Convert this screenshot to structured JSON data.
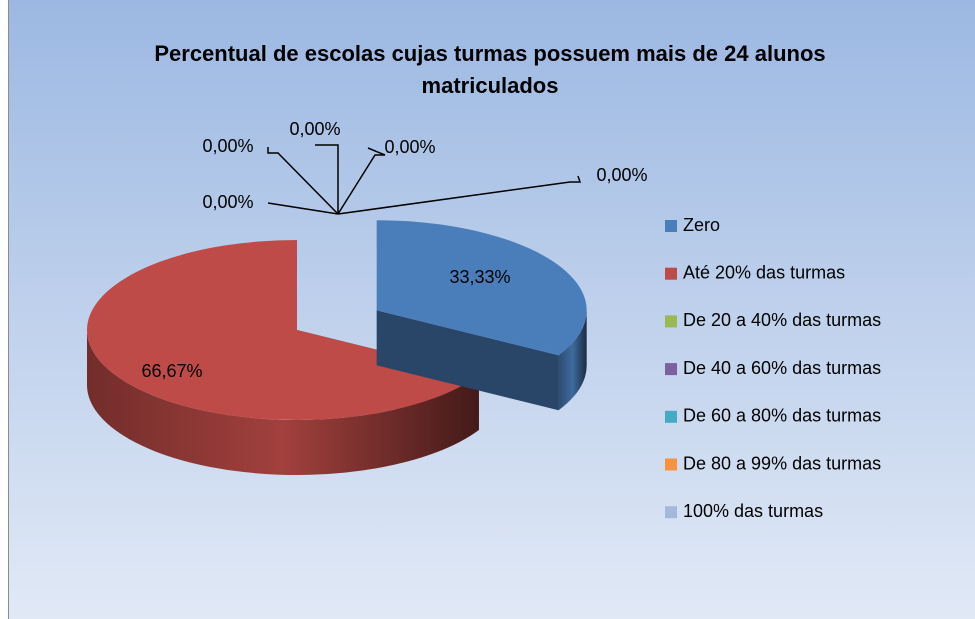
{
  "chart_data": {
    "type": "pie",
    "title": "Percentual de escolas cujas turmas possuem mais de 24 alunos matriculados",
    "categories": [
      "Zero",
      "Até 20% das turmas",
      "De 20 a 40% das turmas",
      "De 40 a 60% das turmas",
      "De 60 a 80% das turmas",
      "De 80 a 99% das turmas",
      "100% das turmas"
    ],
    "values": [
      33.33,
      66.67,
      0,
      0,
      0,
      0,
      0
    ],
    "value_labels": [
      "33,33%",
      "66,67%",
      "0,00%",
      "0,00%",
      "0,00%",
      "0,00%",
      "0,00%"
    ],
    "colors": [
      "#4a7ebb",
      "#be4b48",
      "#98b954",
      "#7d60a0",
      "#46aac5",
      "#f69240",
      "#a5b8dc"
    ],
    "legend": "right"
  }
}
